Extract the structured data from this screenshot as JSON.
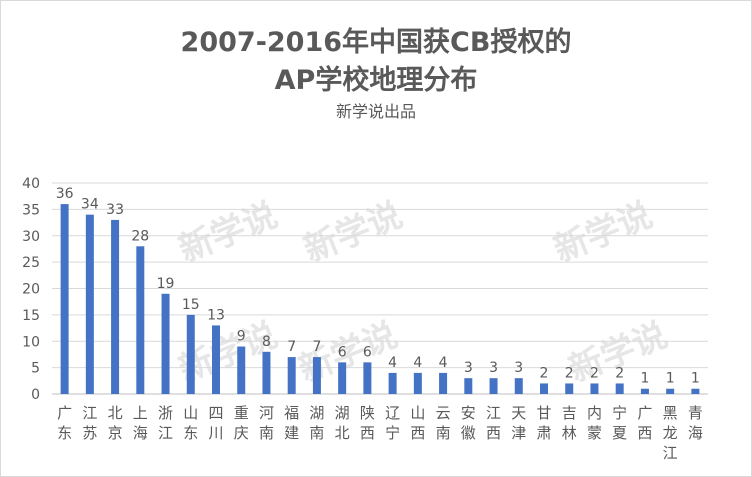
{
  "chart_data": {
    "type": "bar",
    "title_line1": "2007-2016年中国获CB授权的",
    "title_line2": "AP学校地理分布",
    "subtitle": "新学说出品",
    "watermark": "新学说",
    "categories": [
      [
        "广",
        "东"
      ],
      [
        "江",
        "苏"
      ],
      [
        "北",
        "京"
      ],
      [
        "上",
        "海"
      ],
      [
        "浙",
        "江"
      ],
      [
        "山",
        "东"
      ],
      [
        "四",
        "川"
      ],
      [
        "重",
        "庆"
      ],
      [
        "河",
        "南"
      ],
      [
        "福",
        "建"
      ],
      [
        "湖",
        "南"
      ],
      [
        "湖",
        "北"
      ],
      [
        "陕",
        "西"
      ],
      [
        "辽",
        "宁"
      ],
      [
        "山",
        "西"
      ],
      [
        "云",
        "南"
      ],
      [
        "安",
        "徽"
      ],
      [
        "江",
        "西"
      ],
      [
        "天",
        "津"
      ],
      [
        "甘",
        "肃"
      ],
      [
        "吉",
        "林"
      ],
      [
        "内",
        "蒙"
      ],
      [
        "宁",
        "夏"
      ],
      [
        "广",
        "西"
      ],
      [
        "黑",
        "龙",
        "江"
      ],
      [
        "青",
        "海"
      ]
    ],
    "values": [
      36,
      34,
      33,
      28,
      19,
      15,
      13,
      9,
      8,
      7,
      7,
      6,
      6,
      4,
      4,
      4,
      3,
      3,
      3,
      2,
      2,
      2,
      2,
      1,
      1,
      1
    ],
    "yticks": [
      "0",
      "5",
      "10",
      "15",
      "20",
      "25",
      "30",
      "35",
      "40"
    ],
    "ylim": [
      0,
      40
    ],
    "grid": true,
    "bar_color": "#4472c4",
    "text_color": "#595959",
    "grid_color": "#d9d9d9"
  }
}
